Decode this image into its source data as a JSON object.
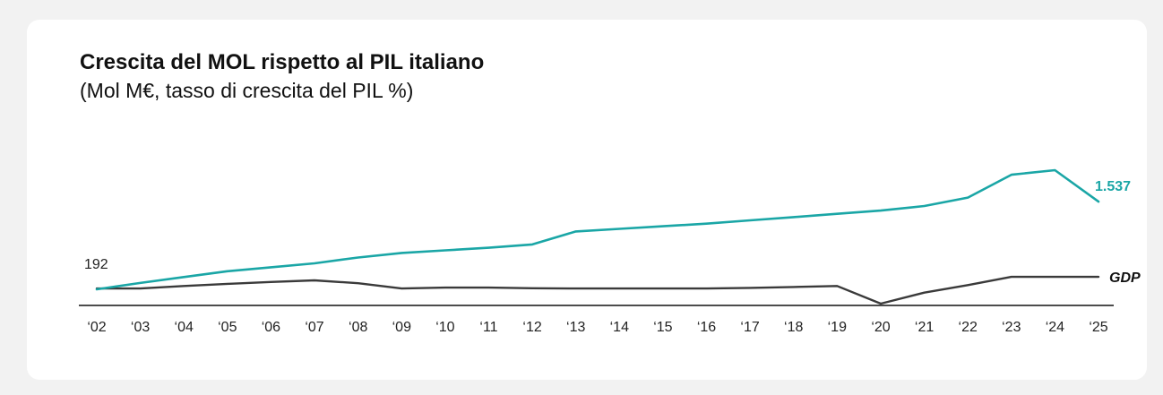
{
  "header": {
    "title": "Crescita del MOL rispetto al PIL italiano",
    "subtitle": "(Mol M€, tasso di crescita del PIL %)"
  },
  "colors": {
    "mol": "#1aa6a6",
    "gdp": "#3a3a3a",
    "axis": "#111111"
  },
  "chart_data": {
    "type": "line",
    "categories": [
      "‘02",
      "‘03",
      "‘04",
      "‘05",
      "‘06",
      "‘07",
      "‘08",
      "‘09",
      "‘10",
      "‘11",
      "‘12",
      "‘13",
      "‘14",
      "‘15",
      "‘16",
      "‘17",
      "‘18",
      "‘19",
      "‘20",
      "‘21",
      "‘22",
      "‘23",
      "‘24",
      "‘25"
    ],
    "series": [
      {
        "key": "mol",
        "values": [
          192,
          290,
          380,
          470,
          530,
          590,
          680,
          750,
          790,
          830,
          880,
          1080,
          1120,
          1160,
          1200,
          1250,
          1300,
          1350,
          1400,
          1470,
          1600,
          1950,
          2020,
          1537
        ],
        "end_label": "1.537",
        "start_label": "192"
      },
      {
        "key": "gdp",
        "name": "GDP",
        "values": [
          0.3,
          0.3,
          1.1,
          1.8,
          2.4,
          2.9,
          2.0,
          0.3,
          0.6,
          0.6,
          0.4,
          0.3,
          0.3,
          0.3,
          0.3,
          0.5,
          0.8,
          1.1,
          -4.5,
          -1.0,
          1.4,
          4.0,
          4.0,
          4.0
        ],
        "end_label": "GDP"
      }
    ],
    "xlabel": "",
    "ylabel": "",
    "grid": false,
    "legend": "none"
  }
}
